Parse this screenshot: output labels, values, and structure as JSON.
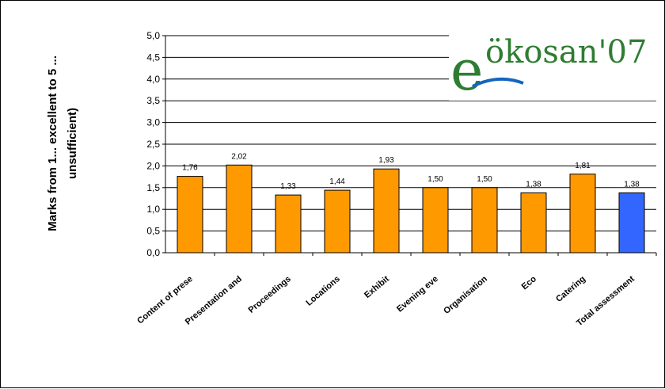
{
  "chart_data": {
    "type": "bar",
    "ylabel_line1": "Marks from 1... excellent  to 5 ...",
    "ylabel_line2": "unsufficient)",
    "ylim": [
      0,
      5
    ],
    "yticks": [
      "0,0",
      "0,5",
      "1,0",
      "1,5",
      "2,0",
      "2,5",
      "3,0",
      "3,5",
      "4,0",
      "4,5",
      "5,0"
    ],
    "grid": true,
    "categories": [
      "Content of prese",
      "Presentation and",
      "Proceedings",
      "Locations",
      "Exhibit",
      "Evening eve",
      "Organisation",
      "Eco",
      "Catering",
      "Total assessment"
    ],
    "values": [
      1.76,
      2.02,
      1.33,
      1.44,
      1.93,
      1.5,
      1.5,
      1.38,
      1.81,
      1.38
    ],
    "value_labels": [
      "1,76",
      "2,02",
      "1,33",
      "1,44",
      "1,93",
      "1,50",
      "1,50",
      "1,38",
      "1,81",
      "1,38"
    ],
    "colors": [
      "#ff9900",
      "#ff9900",
      "#ff9900",
      "#ff9900",
      "#ff9900",
      "#ff9900",
      "#ff9900",
      "#ff9900",
      "#ff9900",
      "#3366ff"
    ]
  },
  "logo": {
    "text": "ökosan'07",
    "mark": "e",
    "colors": {
      "green": "#2e7d32",
      "blue": "#1565c0"
    }
  }
}
